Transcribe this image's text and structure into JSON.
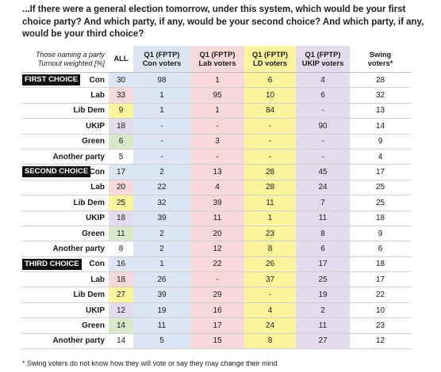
{
  "question": "...If there were a general election tomorrow, under this system, which would be your first choice party? And which party, if any, would be your second choice? And which party, if any, would be your third choice?",
  "meta_line1": "Those naming a party",
  "meta_line2": "Turnout weighted [%]",
  "columns": [
    "ALL",
    "Q1 (FPTP) Con voters",
    "Q1 (FPTP) Lab voters",
    "Q1 (FPTP) LD voters",
    "Q1 (FPTP) UKIP voters",
    "Swing voters*"
  ],
  "col_line1": [
    "ALL",
    "Q1 (FPTP)",
    "Q1 (FPTP)",
    "Q1 (FPTP)",
    "Q1 (FPTP)",
    "Swing"
  ],
  "col_line2": [
    "",
    "Con voters",
    "Lab voters",
    "LD voters",
    "UKIP voters",
    "voters*"
  ],
  "sections": [
    {
      "title": "FIRST CHOICE",
      "rows": [
        {
          "party": "Con",
          "all": "30",
          "con": "98",
          "lab": "1",
          "ld": "6",
          "ukip": "4",
          "swing": "28"
        },
        {
          "party": "Lab",
          "all": "33",
          "con": "1",
          "lab": "95",
          "ld": "10",
          "ukip": "6",
          "swing": "32"
        },
        {
          "party": "Lib Dem",
          "all": "9",
          "con": "1",
          "lab": "1",
          "ld": "84",
          "ukip": "-",
          "swing": "13"
        },
        {
          "party": "UKIP",
          "all": "18",
          "con": "-",
          "lab": "-",
          "ld": "-",
          "ukip": "90",
          "swing": "14"
        },
        {
          "party": "Green",
          "all": "6",
          "con": "-",
          "lab": "3",
          "ld": "-",
          "ukip": "-",
          "swing": "9"
        },
        {
          "party": "Another party",
          "all": "5",
          "con": "-",
          "lab": "-",
          "ld": "-",
          "ukip": "-",
          "swing": "4"
        }
      ]
    },
    {
      "title": "SECOND CHOICE",
      "rows": [
        {
          "party": "Con",
          "all": "17",
          "con": "2",
          "lab": "13",
          "ld": "28",
          "ukip": "45",
          "swing": "17"
        },
        {
          "party": "Lab",
          "all": "20",
          "con": "22",
          "lab": "4",
          "ld": "28",
          "ukip": "24",
          "swing": "25"
        },
        {
          "party": "Lib Dem",
          "all": "25",
          "con": "32",
          "lab": "39",
          "ld": "11",
          "ukip": "7",
          "swing": "25"
        },
        {
          "party": "UKIP",
          "all": "18",
          "con": "39",
          "lab": "11",
          "ld": "1",
          "ukip": "11",
          "swing": "18"
        },
        {
          "party": "Green",
          "all": "11",
          "con": "2",
          "lab": "20",
          "ld": "23",
          "ukip": "8",
          "swing": "9"
        },
        {
          "party": "Another party",
          "all": "8",
          "con": "2",
          "lab": "12",
          "ld": "8",
          "ukip": "6",
          "swing": "6"
        }
      ]
    },
    {
      "title": "THIRD CHOICE",
      "rows": [
        {
          "party": "Con",
          "all": "16",
          "con": "1",
          "lab": "22",
          "ld": "26",
          "ukip": "17",
          "swing": "18"
        },
        {
          "party": "Lab",
          "all": "18",
          "con": "26",
          "lab": "-",
          "ld": "37",
          "ukip": "25",
          "swing": "17"
        },
        {
          "party": "Lib Dem",
          "all": "27",
          "con": "39",
          "lab": "29",
          "ld": "-",
          "ukip": "19",
          "swing": "22"
        },
        {
          "party": "UKIP",
          "all": "12",
          "con": "19",
          "lab": "16",
          "ld": "4",
          "ukip": "2",
          "swing": "10"
        },
        {
          "party": "Green",
          "all": "14",
          "con": "11",
          "lab": "17",
          "ld": "24",
          "ukip": "11",
          "swing": "23"
        },
        {
          "party": "Another party",
          "all": "14",
          "con": "5",
          "lab": "15",
          "ld": "8",
          "ukip": "27",
          "swing": "12"
        }
      ]
    }
  ],
  "footnote": "* Swing voters do not know how they will vote or say they may change their mind",
  "colors": {
    "con": "#dce6f2",
    "lab": "#f6d9d8",
    "ld": "#fdf59b",
    "ukip": "#e3dcec",
    "green": "#d8e8c9",
    "section_label_bg": "#111111"
  }
}
